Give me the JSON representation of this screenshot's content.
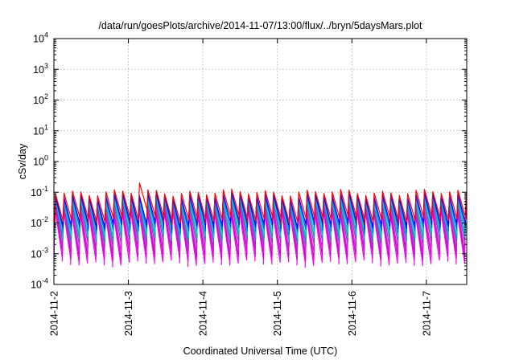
{
  "chart_data": {
    "type": "line",
    "title": "/data/run/goesPlots/archive/2014-11-07/13:00/flux/../bryn/5daysMars.plot",
    "xlabel": "Coordinated Universal Time (UTC)",
    "ylabel": "cSv/day",
    "y_scale": "log",
    "ylim": [
      0.0001,
      10000
    ],
    "y_ticks": [
      {
        "value": 0.0001,
        "base": "10",
        "exp": "-4"
      },
      {
        "value": 0.001,
        "base": "10",
        "exp": "-3"
      },
      {
        "value": 0.01,
        "base": "10",
        "exp": "-2"
      },
      {
        "value": 0.1,
        "base": "10",
        "exp": "-1"
      },
      {
        "value": 1,
        "base": "10",
        "exp": "0"
      },
      {
        "value": 10,
        "base": "10",
        "exp": "1"
      },
      {
        "value": 100,
        "base": "10",
        "exp": "2"
      },
      {
        "value": 1000,
        "base": "10",
        "exp": "3"
      },
      {
        "value": 10000,
        "base": "10",
        "exp": "4"
      }
    ],
    "xlim": [
      "2014-11-02T00:00",
      "2014-11-07T13:00"
    ],
    "x_ticks": [
      {
        "value": "2014-11-02T00:00",
        "label": "2014-11-2"
      },
      {
        "value": "2014-11-03T00:00",
        "label": "2014-11-3"
      },
      {
        "value": "2014-11-04T00:00",
        "label": "2014-11-4"
      },
      {
        "value": "2014-11-05T00:00",
        "label": "2014-11-5"
      },
      {
        "value": "2014-11-06T00:00",
        "label": "2014-11-6"
      },
      {
        "value": "2014-11-07T00:00",
        "label": "2014-11-7"
      }
    ],
    "grid": true,
    "legend": "none",
    "cycle_hours": 2.7,
    "series": [
      {
        "color": "#ff00ff",
        "peak": 0.025,
        "trough": 0.0005
      },
      {
        "color": "#cc00cc",
        "peak": 0.03,
        "trough": 0.0008
      },
      {
        "color": "#d020d0",
        "peak": 0.035,
        "trough": 0.0012
      },
      {
        "color": "#9933cc",
        "peak": 0.045,
        "trough": 0.002
      },
      {
        "color": "#00a0a0",
        "peak": 0.055,
        "trough": 0.003
      },
      {
        "color": "#00cccc",
        "peak": 0.06,
        "trough": 0.004
      },
      {
        "color": "#0060ff",
        "peak": 0.07,
        "trough": 0.006
      },
      {
        "color": "#0000ff",
        "peak": 0.08,
        "trough": 0.008
      },
      {
        "color": "#ff0000",
        "peak": 0.1,
        "trough": 0.012
      }
    ]
  }
}
